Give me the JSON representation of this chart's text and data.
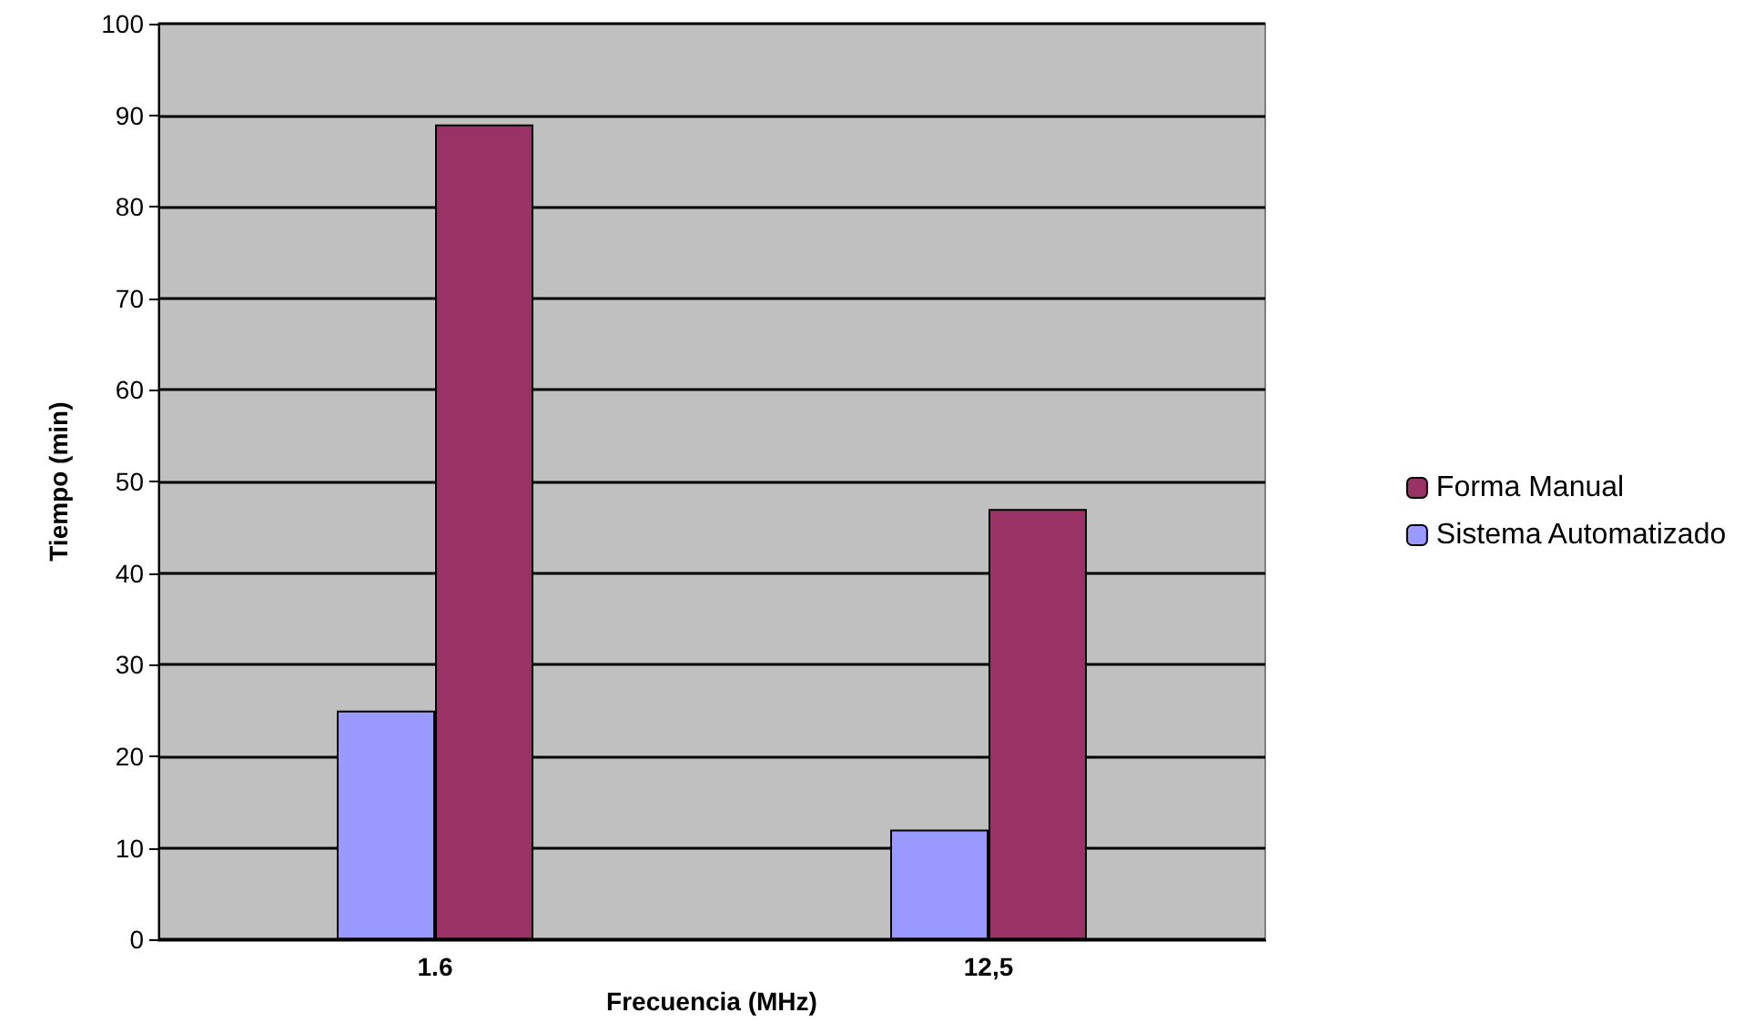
{
  "chart_data": {
    "type": "bar",
    "xlabel": "Frecuencia (MHz)",
    "ylabel": "Tiempo (min)",
    "categories": [
      "1.6",
      "12,5"
    ],
    "series": [
      {
        "name": "Sistema Automatizado",
        "color": "#9999ff",
        "values": [
          25,
          12
        ]
      },
      {
        "name": "Forma Manual",
        "color": "#993366",
        "values": [
          89,
          47
        ]
      }
    ],
    "ylim": [
      0,
      100
    ],
    "yticks": [
      0,
      10,
      20,
      30,
      40,
      50,
      60,
      70,
      80,
      90,
      100
    ],
    "grid": "y",
    "legend": "right"
  }
}
